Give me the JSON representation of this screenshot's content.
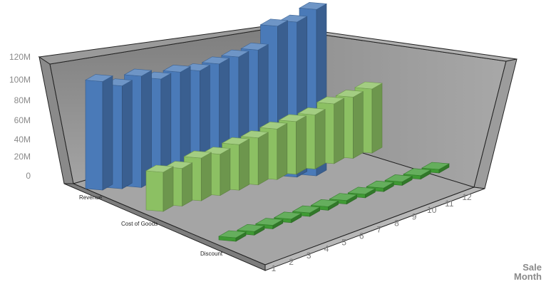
{
  "chart_data": {
    "type": "bar",
    "subtype": "3d-bar",
    "categories": [
      "1",
      "2",
      "3",
      "4",
      "5",
      "6",
      "7",
      "8",
      "9",
      "10",
      "11",
      "12"
    ],
    "series": [
      {
        "name": "Revenue",
        "color": "#4a7ab8",
        "values": [
          77,
          73,
          79,
          76,
          80,
          80,
          84,
          88,
          92,
          108,
          110,
          118
        ]
      },
      {
        "name": "Cost of Goods",
        "color": "#8cc063",
        "values": [
          55,
          53,
          60,
          58,
          64,
          66,
          71,
          74,
          76,
          84,
          86,
          90
        ]
      },
      {
        "name": "Discount",
        "color": "#3f9a34",
        "values": [
          4,
          4,
          4,
          4,
          4,
          4,
          4,
          4,
          4,
          4,
          4,
          4
        ]
      }
    ],
    "yticks": [
      "0",
      "20M",
      "40M",
      "60M",
      "80M",
      "100M",
      "120M"
    ],
    "ylim": [
      0,
      120
    ],
    "xlabel": [
      "Sale",
      "Month"
    ],
    "ylabel": "",
    "title": "",
    "legend": "none",
    "grid": false
  }
}
